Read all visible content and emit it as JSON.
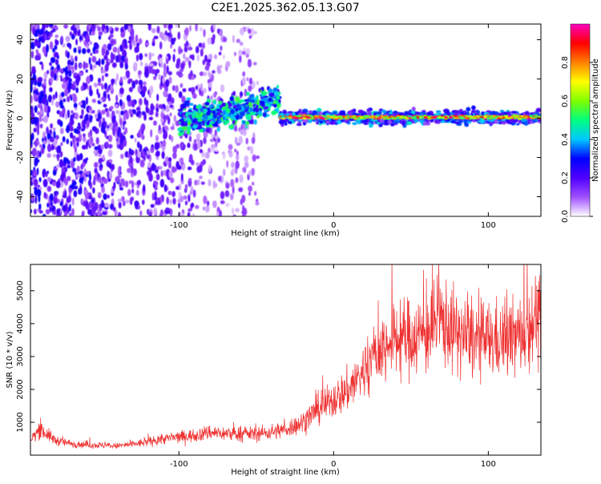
{
  "title": "C2E1.2025.362.05.13.G07",
  "chart_data": [
    {
      "type": "heatmap",
      "xlabel": "Height of straight line (km)",
      "ylabel": "Frequency (Hz)",
      "xlim": [
        -196,
        134
      ],
      "ylim": [
        -50,
        48
      ],
      "xticks": [
        -100,
        0,
        100
      ],
      "yticks": [
        40,
        20,
        0,
        -20,
        -40
      ],
      "colorbar": {
        "label": "Normalized spectral amplitude",
        "range": [
          0,
          1
        ],
        "ticks": [
          "0.0",
          "0.2",
          "0.4",
          "0.6",
          "0.8"
        ],
        "tick_values": [
          0.0,
          0.2,
          0.4,
          0.6,
          0.8
        ],
        "colors": [
          "#ffffff",
          "#a050ff",
          "#5000ff",
          "#0000ff",
          "#00c8ff",
          "#00ff80",
          "#80ff00",
          "#ffff00",
          "#ff8000",
          "#ff0000",
          "#ff00c0"
        ]
      },
      "features": [
        {
          "name": "noise region",
          "x_range": [
            -196,
            -48
          ],
          "freq_range": [
            -50,
            48
          ],
          "amplitude": 0.12
        },
        {
          "name": "rising signal trace",
          "x_range": [
            -100,
            -35
          ],
          "freq_start": 0,
          "freq_end": 10,
          "amplitude": 0.4
        },
        {
          "name": "steady tone",
          "x_range": [
            -35,
            134
          ],
          "freq": 0.5,
          "amplitude": 0.8
        }
      ]
    },
    {
      "type": "line",
      "xlabel": "Height of straight line (km)",
      "ylabel": "SNR (10 * v/v)",
      "xlim": [
        -196,
        134
      ],
      "ylim": [
        0,
        5800
      ],
      "xticks": [
        -100,
        0,
        100
      ],
      "yticks": [
        1000,
        2000,
        3000,
        4000,
        5000
      ],
      "color": "#ee3030",
      "series": [
        {
          "name": "SNR",
          "x": [
            -196,
            -190,
            -180,
            -170,
            -160,
            -150,
            -140,
            -130,
            -120,
            -110,
            -100,
            -90,
            -80,
            -70,
            -60,
            -50,
            -40,
            -30,
            -20,
            -10,
            0,
            10,
            20,
            30,
            40,
            50,
            60,
            70,
            80,
            90,
            100,
            110,
            120,
            130,
            134
          ],
          "values": [
            450,
            800,
            450,
            350,
            320,
            300,
            280,
            330,
            400,
            500,
            550,
            600,
            700,
            650,
            650,
            650,
            700,
            800,
            1000,
            1400,
            1700,
            2000,
            2600,
            3200,
            3500,
            3600,
            3700,
            4100,
            3700,
            3500,
            3500,
            3500,
            3600,
            4200,
            4000
          ]
        }
      ]
    }
  ]
}
